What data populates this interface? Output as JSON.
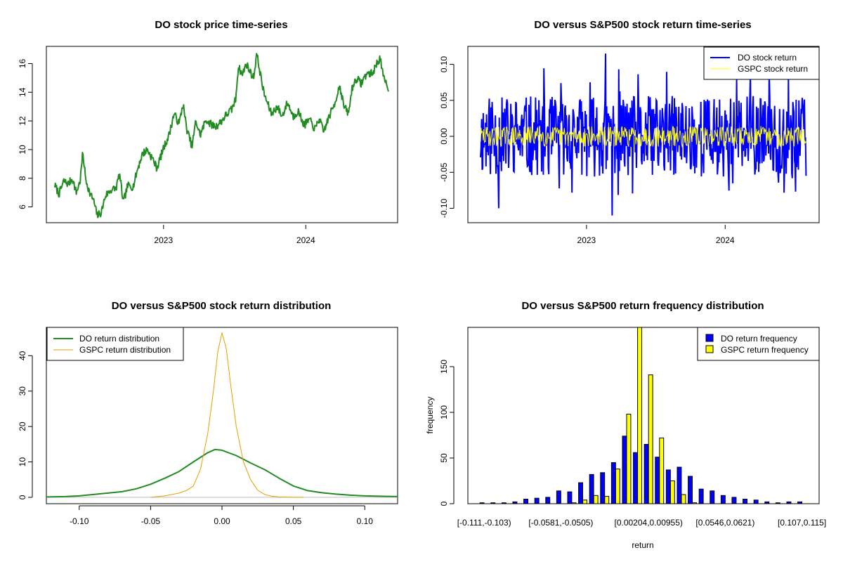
{
  "chart_data": [
    {
      "id": "price",
      "type": "line",
      "title": "DO stock price time-series",
      "xlabel": "",
      "ylabel": "",
      "x_range": [
        "2022-03-28",
        "2024-08-02"
      ],
      "x_ticks": [
        {
          "date": "2023-01-01",
          "label": "2023"
        },
        {
          "date": "2024-01-01",
          "label": "2024"
        }
      ],
      "ylim": [
        4.9,
        17.2
      ],
      "y_ticks": [
        6,
        8,
        10,
        12,
        14,
        16
      ],
      "y_tick_labels": [
        "6",
        "8",
        "10",
        "12",
        "14",
        "16"
      ],
      "series": [
        {
          "color": "#228B22",
          "points": [
            [
              "2022-03-28",
              7.5
            ],
            [
              "2022-04-08",
              6.9
            ],
            [
              "2022-04-20",
              7.8
            ],
            [
              "2022-05-02",
              7.6
            ],
            [
              "2022-05-12",
              8.0
            ],
            [
              "2022-05-22",
              7.0
            ],
            [
              "2022-06-01",
              7.8
            ],
            [
              "2022-06-08",
              9.8
            ],
            [
              "2022-06-15",
              8.0
            ],
            [
              "2022-06-25",
              7.0
            ],
            [
              "2022-07-05",
              6.5
            ],
            [
              "2022-07-15",
              5.4
            ],
            [
              "2022-07-25",
              5.6
            ],
            [
              "2022-08-05",
              6.8
            ],
            [
              "2022-08-20",
              7.2
            ],
            [
              "2022-09-01",
              7.3
            ],
            [
              "2022-09-10",
              8.3
            ],
            [
              "2022-09-20",
              6.3
            ],
            [
              "2022-10-01",
              7.5
            ],
            [
              "2022-10-15",
              7.4
            ],
            [
              "2022-10-28",
              8.8
            ],
            [
              "2022-11-08",
              9.7
            ],
            [
              "2022-11-20",
              10.0
            ],
            [
              "2022-12-05",
              9.3
            ],
            [
              "2022-12-15",
              8.7
            ],
            [
              "2023-01-01",
              10.1
            ],
            [
              "2023-01-15",
              11.0
            ],
            [
              "2023-01-28",
              12.5
            ],
            [
              "2023-02-10",
              11.8
            ],
            [
              "2023-02-20",
              13.2
            ],
            [
              "2023-03-01",
              11.5
            ],
            [
              "2023-03-15",
              10.2
            ],
            [
              "2023-03-25",
              12.0
            ],
            [
              "2023-04-05",
              11.0
            ],
            [
              "2023-04-20",
              12.1
            ],
            [
              "2023-05-01",
              11.8
            ],
            [
              "2023-05-15",
              11.6
            ],
            [
              "2023-05-30",
              12.0
            ],
            [
              "2023-06-10",
              12.4
            ],
            [
              "2023-06-25",
              12.8
            ],
            [
              "2023-07-05",
              13.5
            ],
            [
              "2023-07-12",
              15.8
            ],
            [
              "2023-07-22",
              15.2
            ],
            [
              "2023-08-01",
              16.0
            ],
            [
              "2023-08-10",
              15.5
            ],
            [
              "2023-08-20",
              15.0
            ],
            [
              "2023-08-28",
              16.7
            ],
            [
              "2023-09-05",
              15.5
            ],
            [
              "2023-09-15",
              14.0
            ],
            [
              "2023-09-25",
              13.2
            ],
            [
              "2023-10-05",
              12.5
            ],
            [
              "2023-10-20",
              13.0
            ],
            [
              "2023-11-01",
              12.3
            ],
            [
              "2023-11-15",
              13.3
            ],
            [
              "2023-11-30",
              12.3
            ],
            [
              "2023-12-12",
              12.7
            ],
            [
              "2023-12-28",
              11.7
            ],
            [
              "2024-01-10",
              12.1
            ],
            [
              "2024-01-25",
              11.4
            ],
            [
              "2024-02-05",
              12.2
            ],
            [
              "2024-02-15",
              11.2
            ],
            [
              "2024-03-01",
              12.3
            ],
            [
              "2024-03-15",
              13.2
            ],
            [
              "2024-03-28",
              14.5
            ],
            [
              "2024-04-08",
              13.0
            ],
            [
              "2024-04-20",
              12.5
            ],
            [
              "2024-04-28",
              14.2
            ],
            [
              "2024-05-10",
              15.0
            ],
            [
              "2024-05-22",
              14.6
            ],
            [
              "2024-06-05",
              15.3
            ],
            [
              "2024-06-20",
              15.3
            ],
            [
              "2024-07-01",
              16.0
            ],
            [
              "2024-07-10",
              16.4
            ],
            [
              "2024-07-18",
              15.0
            ],
            [
              "2024-07-25",
              14.6
            ],
            [
              "2024-08-02",
              14.2
            ]
          ]
        }
      ],
      "grid": false
    },
    {
      "id": "returns",
      "type": "line",
      "title": "DO versus S&P500 stock return time-series",
      "xlabel": "",
      "ylabel": "",
      "x_range": [
        "2022-03-28",
        "2024-08-02"
      ],
      "x_ticks": [
        {
          "date": "2023-01-01",
          "label": "2023"
        },
        {
          "date": "2024-01-01",
          "label": "2024"
        }
      ],
      "ylim": [
        -0.12,
        0.125
      ],
      "y_ticks": [
        -0.1,
        -0.05,
        0.0,
        0.05,
        0.1
      ],
      "y_tick_labels": [
        "-0.10",
        "-0.05",
        "0.00",
        "0.05",
        "0.10"
      ],
      "series": [
        {
          "name": "DO stock return",
          "color": "#0000FF",
          "volatility": 0.035,
          "extremes": [
            [
              "2023-02-20",
              0.115
            ],
            [
              "2023-03-10",
              -0.11
            ],
            [
              "2022-05-15",
              -0.1
            ],
            [
              "2024-06-15",
              0.085
            ]
          ]
        },
        {
          "name": "GSPC stock return",
          "color": "#FFFF00",
          "volatility": 0.011
        }
      ],
      "legend": {
        "position": "top-right",
        "entries": [
          "DO stock return",
          "GSPC stock return"
        ]
      },
      "grid": false
    },
    {
      "id": "density",
      "type": "line",
      "title": "DO versus S&P500 stock return distribution",
      "xlabel": "",
      "ylabel": "",
      "xlim": [
        -0.123,
        0.123
      ],
      "ylim": [
        -1.8,
        48
      ],
      "x_ticks": [
        -0.1,
        -0.05,
        0.0,
        0.05,
        0.1
      ],
      "x_tick_labels": [
        "-0.10",
        "-0.05",
        "0.00",
        "0.05",
        "0.10"
      ],
      "y_ticks": [
        0,
        10,
        20,
        30,
        40
      ],
      "y_tick_labels": [
        "0",
        "10",
        "20",
        "30",
        "40"
      ],
      "series": [
        {
          "name": "DO return distribution",
          "color": "#228B22",
          "points": [
            [
              -0.123,
              0.1
            ],
            [
              -0.11,
              0.2
            ],
            [
              -0.1,
              0.4
            ],
            [
              -0.09,
              0.8
            ],
            [
              -0.08,
              1.2
            ],
            [
              -0.07,
              1.6
            ],
            [
              -0.06,
              2.4
            ],
            [
              -0.05,
              3.7
            ],
            [
              -0.04,
              5.4
            ],
            [
              -0.03,
              7.3
            ],
            [
              -0.02,
              10.0
            ],
            [
              -0.01,
              12.6
            ],
            [
              -0.005,
              13.5
            ],
            [
              0.0,
              13.3
            ],
            [
              0.01,
              11.8
            ],
            [
              0.02,
              9.7
            ],
            [
              0.03,
              7.8
            ],
            [
              0.04,
              5.4
            ],
            [
              0.05,
              3.2
            ],
            [
              0.06,
              1.9
            ],
            [
              0.07,
              1.3
            ],
            [
              0.08,
              0.9
            ],
            [
              0.09,
              0.6
            ],
            [
              0.1,
              0.4
            ],
            [
              0.11,
              0.3
            ],
            [
              0.123,
              0.2
            ]
          ]
        },
        {
          "name": "GSPC return distribution",
          "color": "#E69F00",
          "points": [
            [
              -0.05,
              0.0
            ],
            [
              -0.04,
              0.4
            ],
            [
              -0.03,
              1.2
            ],
            [
              -0.025,
              1.9
            ],
            [
              -0.02,
              3.2
            ],
            [
              -0.015,
              8.0
            ],
            [
              -0.01,
              18.0
            ],
            [
              -0.006,
              30.0
            ],
            [
              -0.003,
              41.0
            ],
            [
              0.0,
              46.5
            ],
            [
              0.003,
              42.0
            ],
            [
              0.006,
              32.0
            ],
            [
              0.01,
              20.0
            ],
            [
              0.015,
              10.0
            ],
            [
              0.02,
              5.0
            ],
            [
              0.025,
              2.0
            ],
            [
              0.03,
              0.8
            ],
            [
              0.035,
              0.3
            ],
            [
              0.04,
              0.1
            ],
            [
              0.05,
              0.0
            ],
            [
              0.057,
              0.0
            ]
          ]
        }
      ],
      "legend": {
        "position": "top-left",
        "entries": [
          "DO return distribution",
          "GSPC return distribution"
        ]
      },
      "grid": false
    },
    {
      "id": "frequency",
      "type": "bar",
      "title": "DO versus S&P500 return frequency distribution",
      "xlabel": "return",
      "ylabel": "frequency",
      "ylim": [
        0,
        193
      ],
      "y_ticks": [
        0,
        50,
        100,
        150
      ],
      "y_tick_labels": [
        "0",
        "50",
        "100",
        "150"
      ],
      "x_tick_labels": [
        "[-0.111,-0.103)",
        "[-0.0581,-0.0505)",
        "[0.00204,0.00955)",
        "[0.0546,0.0621)",
        "[0.107,0.115]"
      ],
      "x_tick_bin_index": [
        0,
        7,
        15,
        22,
        29
      ],
      "series": [
        {
          "name": "DO return frequency",
          "color": "#0000FF",
          "values": [
            1,
            1,
            1,
            2,
            5,
            6,
            7,
            14,
            13,
            23,
            32,
            34,
            45,
            74,
            56,
            65,
            51,
            37,
            40,
            30,
            16,
            14,
            9,
            7,
            5,
            4,
            2,
            1,
            2,
            2
          ]
        },
        {
          "name": "GSPC return frequency",
          "color": "#FFFF00",
          "values": [
            0,
            0,
            0,
            0,
            0,
            0,
            0,
            0,
            1,
            4,
            9,
            8,
            38,
            98,
            195,
            141,
            72,
            25,
            10,
            1,
            0,
            0,
            0,
            0,
            0,
            0,
            0,
            0,
            0,
            0
          ]
        }
      ],
      "legend": {
        "position": "top-right",
        "entries": [
          "DO return frequency",
          "GSPC return frequency"
        ]
      },
      "grid": false
    }
  ]
}
